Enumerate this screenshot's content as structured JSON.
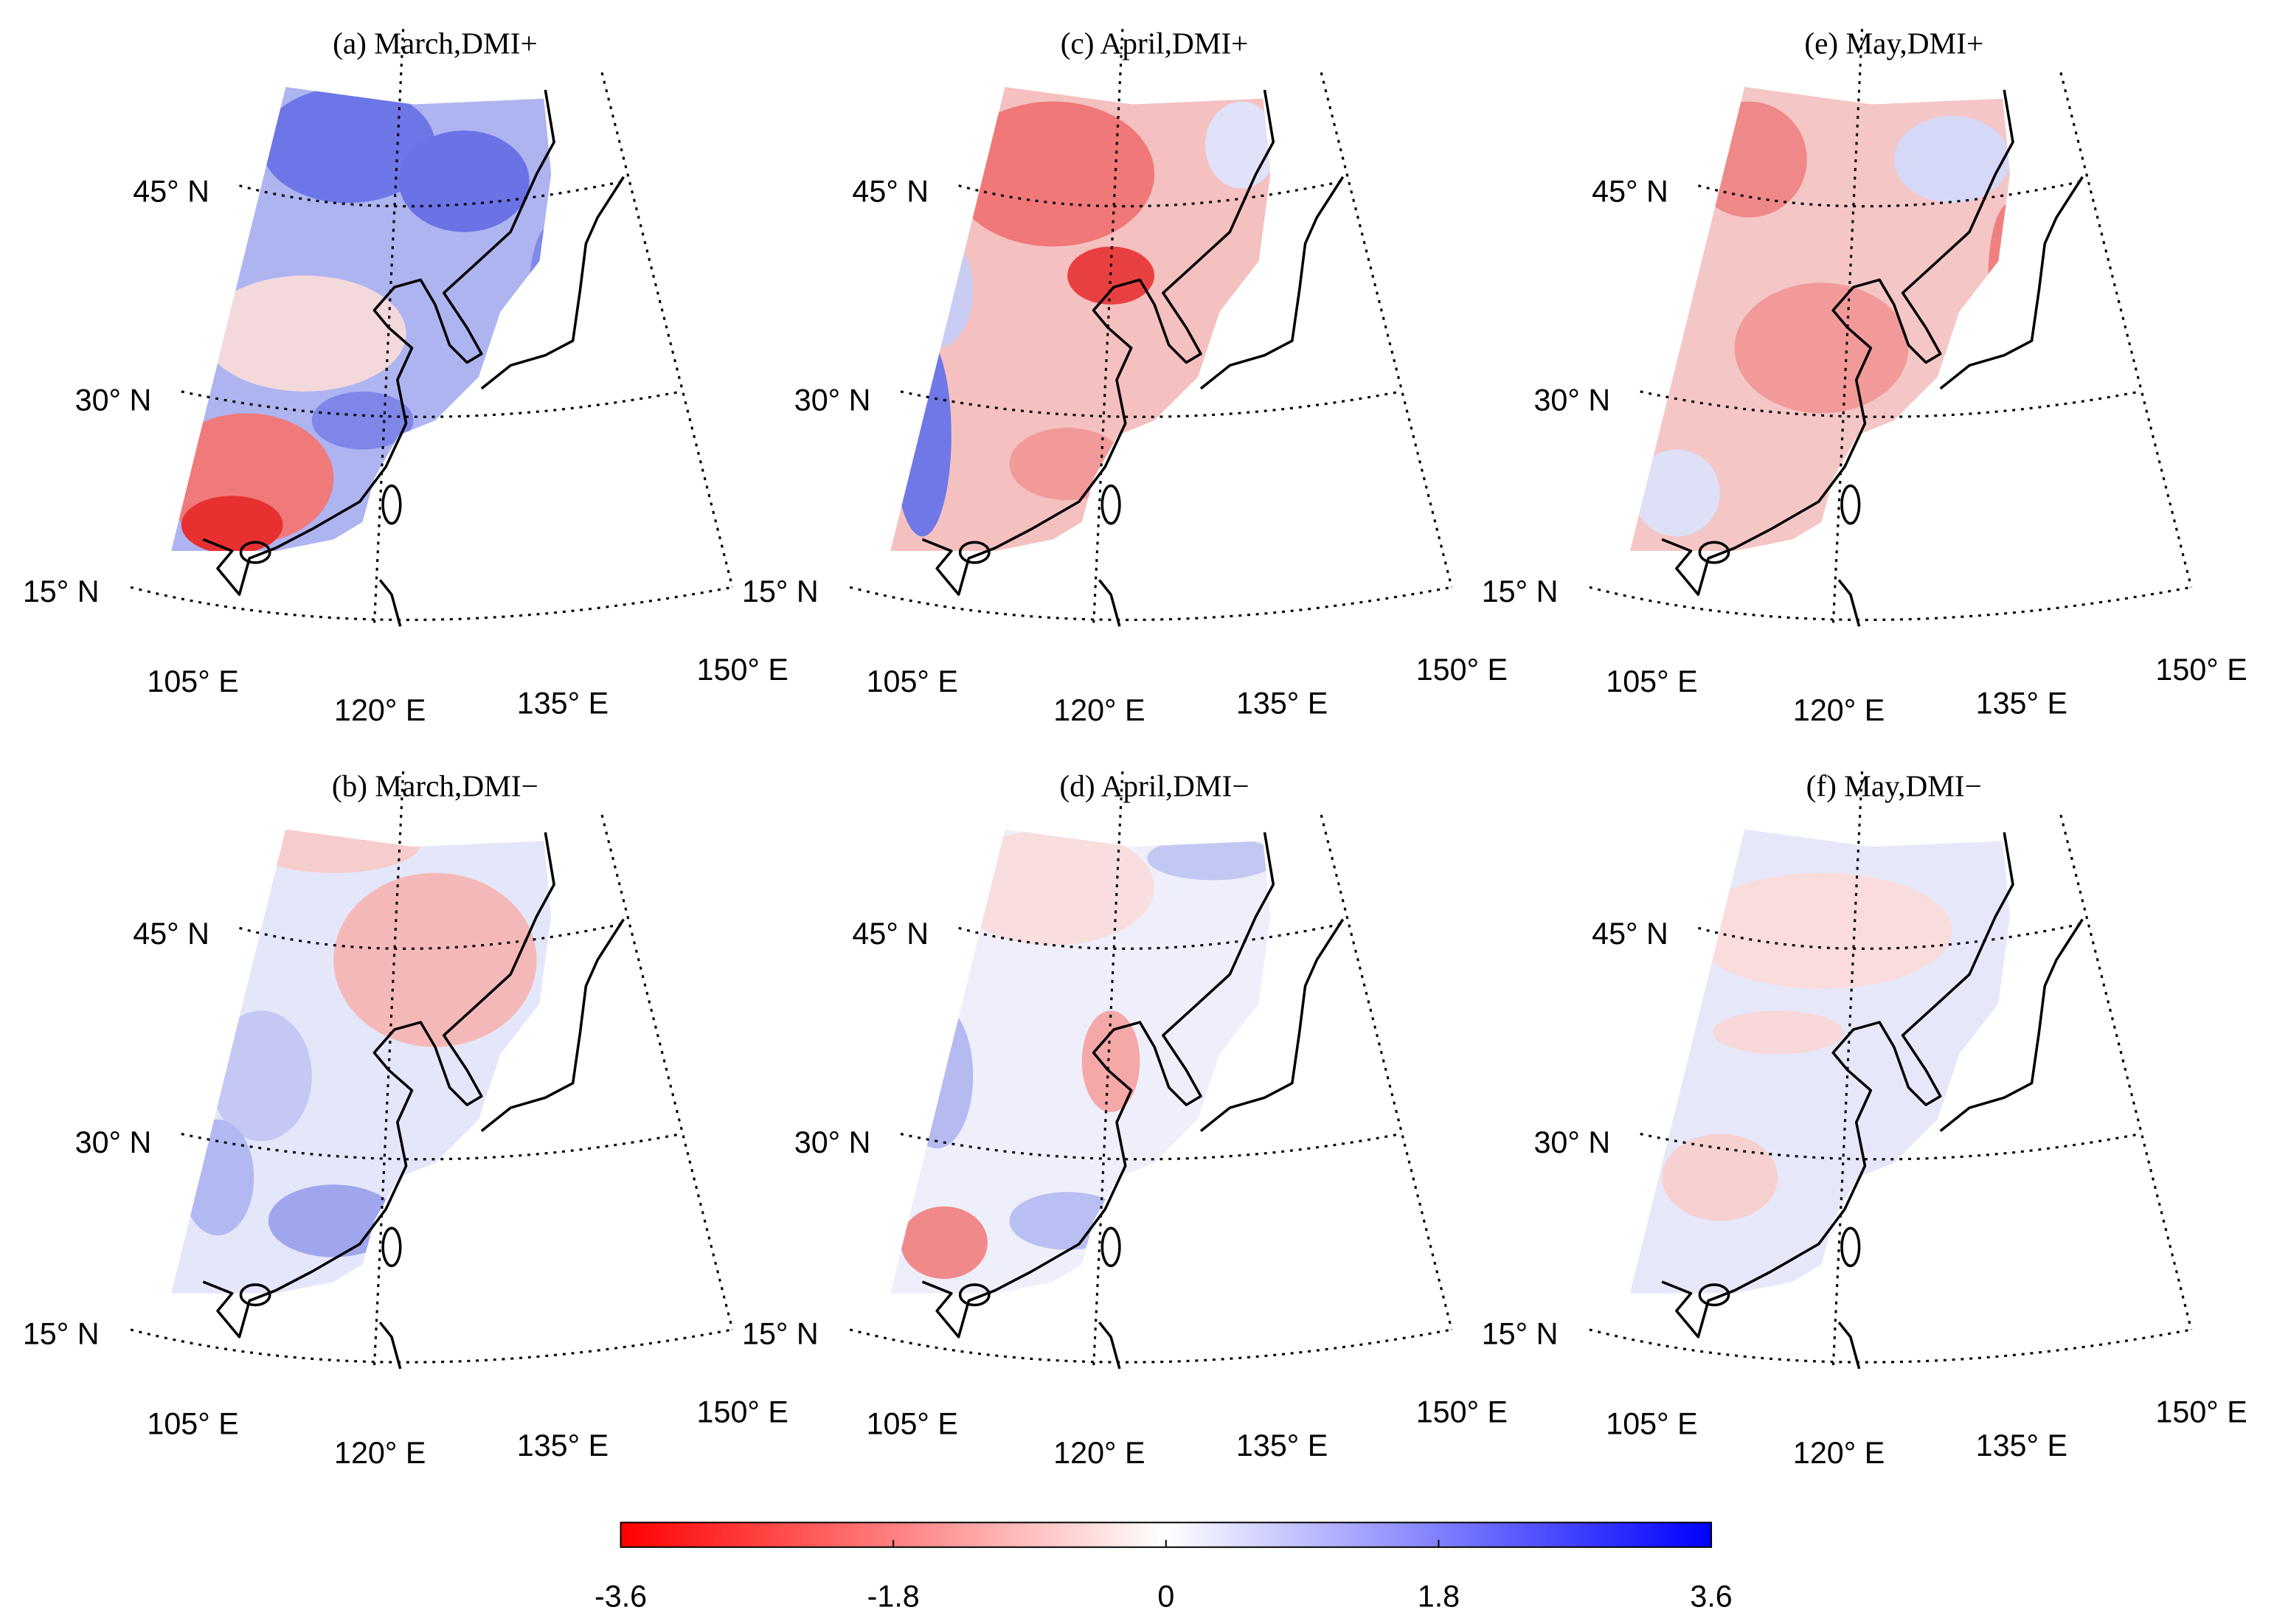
{
  "panels": [
    {
      "title": "(a) March,DMI+",
      "lat_labels": [
        "45° N",
        "30° N",
        "15° N"
      ],
      "lon_labels": [
        "105° E",
        "120° E",
        "135° E",
        "150° E"
      ]
    },
    {
      "title": "(c) April,DMI+",
      "lat_labels": [
        "45° N",
        "30° N",
        "15° N"
      ],
      "lon_labels": [
        "105° E",
        "120° E",
        "135° E",
        "150° E"
      ]
    },
    {
      "title": "(e) May,DMI+",
      "lat_labels": [
        "45° N",
        "30° N",
        "15° N"
      ],
      "lon_labels": [
        "105° E",
        "120° E",
        "135° E",
        "150° E"
      ]
    },
    {
      "title": "(b) March,DMI−",
      "lat_labels": [
        "45° N",
        "30° N",
        "15° N"
      ],
      "lon_labels": [
        "105° E",
        "120° E",
        "135° E",
        "150° E"
      ]
    },
    {
      "title": "(d) April,DMI−",
      "lat_labels": [
        "45° N",
        "30° N",
        "15° N"
      ],
      "lon_labels": [
        "105° E",
        "120° E",
        "135° E",
        "150° E"
      ]
    },
    {
      "title": "(f) May,DMI−",
      "lat_labels": [
        "45° N",
        "30° N",
        "15° N"
      ],
      "lon_labels": [
        "105° E",
        "120° E",
        "135° E",
        "150° E"
      ]
    }
  ],
  "colorbar": {
    "lim": [
      -3.6,
      3.6
    ],
    "ticks": [
      -3.6,
      -1.8,
      0,
      1.8,
      3.6
    ]
  }
}
